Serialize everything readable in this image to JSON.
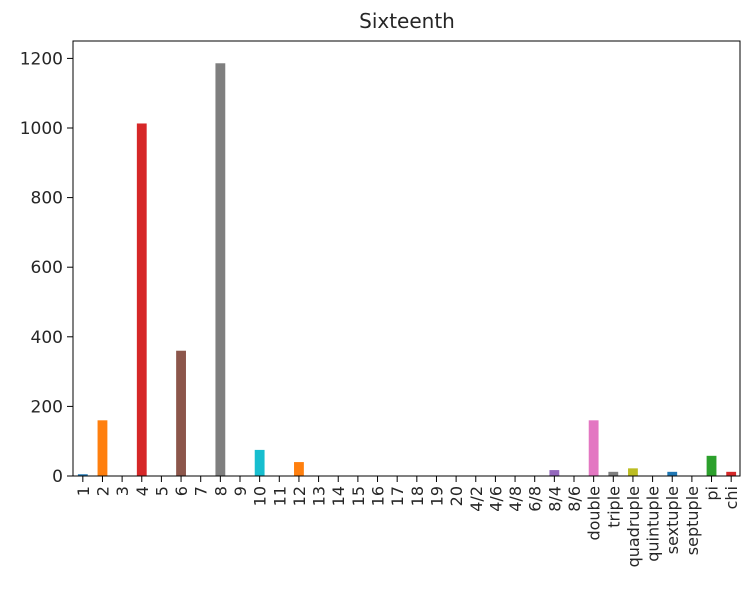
{
  "chart_data": {
    "type": "bar",
    "title": "Sixteenth",
    "xlabel": "",
    "ylabel": "",
    "ylim": [
      0,
      1250
    ],
    "yticks": [
      0,
      200,
      400,
      600,
      800,
      1000,
      1200
    ],
    "grid": false,
    "legend": "none",
    "categories": [
      "1",
      "2",
      "3",
      "4",
      "5",
      "6",
      "7",
      "8",
      "9",
      "10",
      "11",
      "12",
      "13",
      "14",
      "15",
      "16",
      "17",
      "18",
      "19",
      "20",
      "4/2",
      "4/6",
      "4/8",
      "6/8",
      "8/4",
      "8/6",
      "double",
      "triple",
      "quadruple",
      "quintuple",
      "sextuple",
      "septuple",
      "pi",
      "chi"
    ],
    "values": [
      5,
      160,
      0,
      1013,
      0,
      360,
      0,
      1186,
      0,
      75,
      0,
      40,
      0,
      0,
      0,
      0,
      0,
      0,
      0,
      0,
      0,
      0,
      0,
      0,
      17,
      0,
      160,
      12,
      22,
      0,
      12,
      0,
      58,
      12
    ],
    "colors": [
      "#1f77b4",
      "#ff7f0e",
      "#2ca02c",
      "#d62728",
      "#9467bd",
      "#8c564b",
      "#e377c2",
      "#7f7f7f",
      "#bcbd22",
      "#17becf"
    ]
  }
}
